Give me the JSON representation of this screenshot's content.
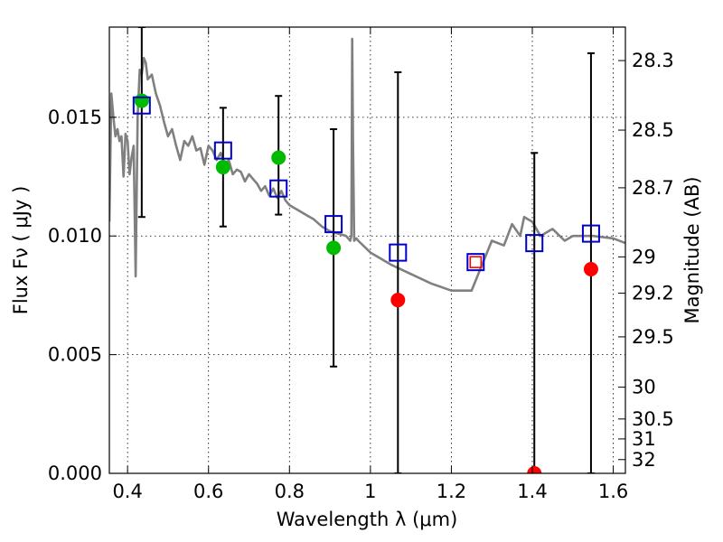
{
  "chart_data": {
    "type": "scatter",
    "xlabel": "Wavelength  λ (μm)",
    "ylabel": "Flux  Fν  ( μJy )",
    "ylabel_right": "Magnitude (AB)",
    "xlim": [
      0.355,
      1.63
    ],
    "ylim": [
      0.0,
      0.0188
    ],
    "grid": true,
    "x_ticks": [
      0.4,
      0.6,
      0.8,
      1.0,
      1.2,
      1.4,
      1.6
    ],
    "x_tick_labels": [
      "0.4",
      "0.6",
      "0.8",
      "1",
      "1.2",
      "1.4",
      "1.6"
    ],
    "y_ticks": [
      0.0,
      0.005,
      0.01,
      0.015
    ],
    "y_tick_labels": [
      "0.000",
      "0.005",
      "0.010",
      "0.015"
    ],
    "mag_ticks": [
      {
        "label": "28.3",
        "flux": 0.01739
      },
      {
        "label": "28.5",
        "flux": 0.01446
      },
      {
        "label": "28.7",
        "flux": 0.01203
      },
      {
        "label": "29",
        "flux": 0.00912
      },
      {
        "label": "29.2",
        "flux": 0.00759
      },
      {
        "label": "29.5",
        "flux": 0.00575
      },
      {
        "label": "30",
        "flux": 0.00363
      },
      {
        "label": "30.5",
        "flux": 0.00229
      },
      {
        "label": "31",
        "flux": 0.00145
      },
      {
        "label": "32",
        "flux": 0.00058
      }
    ],
    "series": [
      {
        "kind": "line",
        "color": "#808080",
        "x": [
          0.355,
          0.36,
          0.365,
          0.37,
          0.375,
          0.38,
          0.385,
          0.39,
          0.395,
          0.4,
          0.405,
          0.41,
          0.415,
          0.42,
          0.425,
          0.43,
          0.435,
          0.44,
          0.445,
          0.45,
          0.46,
          0.47,
          0.48,
          0.49,
          0.5,
          0.51,
          0.52,
          0.53,
          0.54,
          0.55,
          0.56,
          0.57,
          0.58,
          0.59,
          0.6,
          0.61,
          0.62,
          0.63,
          0.64,
          0.65,
          0.66,
          0.67,
          0.68,
          0.69,
          0.7,
          0.71,
          0.72,
          0.73,
          0.74,
          0.75,
          0.76,
          0.77,
          0.78,
          0.79,
          0.8,
          0.82,
          0.84,
          0.86,
          0.88,
          0.9,
          0.92,
          0.94,
          0.95,
          0.953,
          0.955,
          0.957,
          0.96,
          0.965,
          0.97,
          1.0,
          1.05,
          1.1,
          1.15,
          1.2,
          1.25,
          1.3,
          1.33,
          1.35,
          1.37,
          1.38,
          1.4,
          1.42,
          1.45,
          1.48,
          1.5,
          1.55,
          1.6,
          1.63
        ],
        "y": [
          0.0106,
          0.016,
          0.015,
          0.0142,
          0.0145,
          0.014,
          0.0142,
          0.0125,
          0.0143,
          0.014,
          0.0126,
          0.0133,
          0.0138,
          0.0083,
          0.015,
          0.017,
          0.0168,
          0.0175,
          0.0173,
          0.0166,
          0.0168,
          0.016,
          0.0155,
          0.0148,
          0.0142,
          0.0145,
          0.0138,
          0.0132,
          0.014,
          0.0138,
          0.0142,
          0.0136,
          0.0137,
          0.013,
          0.0138,
          0.0136,
          0.0132,
          0.0135,
          0.013,
          0.0132,
          0.0126,
          0.0128,
          0.0127,
          0.0123,
          0.0126,
          0.0124,
          0.0122,
          0.0119,
          0.0121,
          0.0117,
          0.012,
          0.0116,
          0.0119,
          0.0115,
          0.0113,
          0.0111,
          0.0109,
          0.0107,
          0.0104,
          0.0102,
          0.0101,
          0.01,
          0.0098,
          0.01,
          0.0183,
          0.014,
          0.0098,
          0.0099,
          0.0098,
          0.0093,
          0.0088,
          0.0084,
          0.008,
          0.0077,
          0.0077,
          0.0098,
          0.0096,
          0.0105,
          0.01,
          0.0108,
          0.0106,
          0.01,
          0.0103,
          0.0098,
          0.01,
          0.01,
          0.0099,
          0.0097
        ]
      },
      {
        "kind": "points",
        "marker": "circle",
        "color": "#00bb00",
        "x": [
          0.435,
          0.636,
          0.773,
          0.909
        ],
        "y": [
          0.0157,
          0.0129,
          0.0133,
          0.0095
        ]
      },
      {
        "kind": "points",
        "marker": "circle",
        "color": "#ff0000",
        "x": [
          1.068,
          1.405,
          1.545
        ],
        "y": [
          0.0073,
          0.0,
          0.0086
        ]
      },
      {
        "kind": "points",
        "marker": "square",
        "color": "#0000cc",
        "x": [
          0.435,
          0.636,
          0.773,
          0.909,
          1.068,
          1.26,
          1.405,
          1.545
        ],
        "y": [
          0.0155,
          0.0136,
          0.012,
          0.0105,
          0.0093,
          0.0089,
          0.0097,
          0.0101
        ],
        "yerr_low": [
          0.0108,
          0.0104,
          0.0109,
          0.0045,
          0.0,
          null,
          0.0,
          0.0
        ],
        "yerr_high": [
          0.0188,
          0.0154,
          0.0159,
          0.0145,
          0.0169,
          null,
          0.0135,
          0.0177
        ]
      },
      {
        "kind": "points",
        "marker": "square-small",
        "color": "#ff0000",
        "x": [
          1.26
        ],
        "y": [
          0.0089
        ]
      }
    ]
  }
}
